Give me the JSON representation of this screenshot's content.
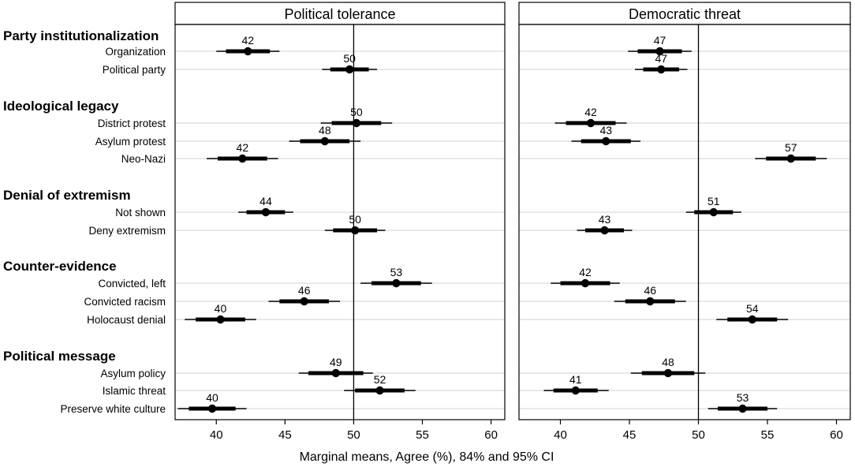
{
  "chart_data": {
    "type": "scatter",
    "subtype": "coefficient-plot",
    "xlabel": "Marginal means, Agree (%), 84% and 95% CI",
    "xlim": [
      37,
      61
    ],
    "xticks": [
      40,
      45,
      50,
      55,
      60
    ],
    "reference_line": 50,
    "grid": "horizontal",
    "groups": [
      {
        "label": "Party institutionalization",
        "items": [
          "Organization",
          "Political party"
        ]
      },
      {
        "label": "Ideological legacy",
        "items": [
          "District protest",
          "Asylum protest",
          "Neo-Nazi"
        ]
      },
      {
        "label": "Denial of extremism",
        "items": [
          "Not shown",
          "Deny extremism"
        ]
      },
      {
        "label": "Counter-evidence",
        "items": [
          "Convicted, left",
          "Convicted racism",
          "Holocaust denial"
        ]
      },
      {
        "label": "Political message",
        "items": [
          "Asylum policy",
          "Islamic threat",
          "Preserve white culture"
        ]
      }
    ],
    "panels": [
      {
        "title": "Political tolerance",
        "points": [
          {
            "item": "Organization",
            "est": 42.3,
            "label": "42",
            "ci84": [
              40.7,
              43.9
            ],
            "ci95": [
              40.0,
              44.6
            ]
          },
          {
            "item": "Political party",
            "est": 49.7,
            "label": "50",
            "ci84": [
              48.3,
              51.1
            ],
            "ci95": [
              47.7,
              51.7
            ]
          },
          {
            "item": "District protest",
            "est": 50.2,
            "label": "50",
            "ci84": [
              48.4,
              52.0
            ],
            "ci95": [
              47.6,
              52.8
            ]
          },
          {
            "item": "Asylum protest",
            "est": 47.9,
            "label": "48",
            "ci84": [
              46.1,
              49.7
            ],
            "ci95": [
              45.3,
              50.5
            ]
          },
          {
            "item": "Neo-Nazi",
            "est": 41.9,
            "label": "42",
            "ci84": [
              40.1,
              43.7
            ],
            "ci95": [
              39.3,
              44.5
            ]
          },
          {
            "item": "Not shown",
            "est": 43.6,
            "label": "44",
            "ci84": [
              42.2,
              45.0
            ],
            "ci95": [
              41.6,
              45.6
            ]
          },
          {
            "item": "Deny extremism",
            "est": 50.1,
            "label": "50",
            "ci84": [
              48.5,
              51.7
            ],
            "ci95": [
              47.9,
              52.3
            ]
          },
          {
            "item": "Convicted, left",
            "est": 53.1,
            "label": "53",
            "ci84": [
              51.3,
              54.9
            ],
            "ci95": [
              50.5,
              55.7
            ]
          },
          {
            "item": "Convicted racism",
            "est": 46.4,
            "label": "46",
            "ci84": [
              44.6,
              48.2
            ],
            "ci95": [
              43.8,
              49.0
            ]
          },
          {
            "item": "Holocaust denial",
            "est": 40.3,
            "label": "40",
            "ci84": [
              38.5,
              42.1
            ],
            "ci95": [
              37.7,
              42.9
            ]
          },
          {
            "item": "Asylum policy",
            "est": 48.7,
            "label": "49",
            "ci84": [
              46.7,
              50.7
            ],
            "ci95": [
              46.0,
              51.4
            ]
          },
          {
            "item": "Islamic threat",
            "est": 51.9,
            "label": "52",
            "ci84": [
              50.1,
              53.7
            ],
            "ci95": [
              49.3,
              54.5
            ]
          },
          {
            "item": "Preserve white culture",
            "est": 39.7,
            "label": "40",
            "ci84": [
              38.0,
              41.4
            ],
            "ci95": [
              37.2,
              42.2
            ]
          }
        ]
      },
      {
        "title": "Democratic threat",
        "points": [
          {
            "item": "Organization",
            "est": 47.2,
            "label": "47",
            "ci84": [
              45.6,
              48.8
            ],
            "ci95": [
              44.9,
              49.5
            ]
          },
          {
            "item": "Political party",
            "est": 47.3,
            "label": "47",
            "ci84": [
              46.0,
              48.6
            ],
            "ci95": [
              45.4,
              49.2
            ]
          },
          {
            "item": "District protest",
            "est": 42.2,
            "label": "42",
            "ci84": [
              40.4,
              44.0
            ],
            "ci95": [
              39.6,
              44.8
            ]
          },
          {
            "item": "Asylum protest",
            "est": 43.3,
            "label": "43",
            "ci84": [
              41.5,
              45.1
            ],
            "ci95": [
              40.8,
              45.8
            ]
          },
          {
            "item": "Neo-Nazi",
            "est": 56.7,
            "label": "57",
            "ci84": [
              54.9,
              58.5
            ],
            "ci95": [
              54.1,
              59.3
            ]
          },
          {
            "item": "Not shown",
            "est": 51.1,
            "label": "51",
            "ci84": [
              49.7,
              52.5
            ],
            "ci95": [
              49.1,
              53.1
            ]
          },
          {
            "item": "Deny extremism",
            "est": 43.2,
            "label": "43",
            "ci84": [
              41.8,
              44.6
            ],
            "ci95": [
              41.2,
              45.2
            ]
          },
          {
            "item": "Convicted, left",
            "est": 41.8,
            "label": "42",
            "ci84": [
              40.0,
              43.6
            ],
            "ci95": [
              39.3,
              44.3
            ]
          },
          {
            "item": "Convicted racism",
            "est": 46.5,
            "label": "46",
            "ci84": [
              44.7,
              48.3
            ],
            "ci95": [
              43.9,
              49.1
            ]
          },
          {
            "item": "Holocaust denial",
            "est": 53.9,
            "label": "54",
            "ci84": [
              52.1,
              55.7
            ],
            "ci95": [
              51.3,
              56.5
            ]
          },
          {
            "item": "Asylum policy",
            "est": 47.8,
            "label": "48",
            "ci84": [
              45.9,
              49.7
            ],
            "ci95": [
              45.1,
              50.5
            ]
          },
          {
            "item": "Islamic threat",
            "est": 41.1,
            "label": "41",
            "ci84": [
              39.5,
              42.7
            ],
            "ci95": [
              38.8,
              43.5
            ]
          },
          {
            "item": "Preserve white culture",
            "est": 53.2,
            "label": "53",
            "ci84": [
              51.4,
              55.0
            ],
            "ci95": [
              50.7,
              55.7
            ]
          }
        ]
      }
    ]
  }
}
